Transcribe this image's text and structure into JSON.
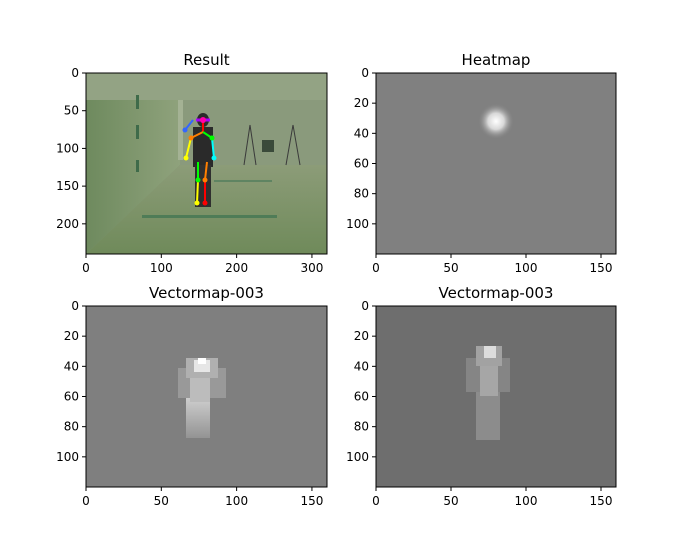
{
  "chart_data": [
    {
      "type": "image",
      "title": "Result",
      "xlim": [
        0,
        320
      ],
      "ylim": [
        240,
        0
      ],
      "xticks": [
        0,
        100,
        200,
        300
      ],
      "yticks": [
        0,
        50,
        100,
        150,
        200
      ],
      "skeleton_colors": [
        "#ff0000",
        "#ff7f00",
        "#ffff00",
        "#00ff00",
        "#00ffff",
        "#0055ff",
        "#aa00ff",
        "#ff00aa"
      ]
    },
    {
      "type": "heatmap",
      "title": "Heatmap",
      "xlim": [
        0,
        160
      ],
      "ylim": [
        120,
        0
      ],
      "xticks": [
        0,
        50,
        100,
        150
      ],
      "yticks": [
        0,
        20,
        40,
        60,
        80,
        100
      ],
      "background": "#808080",
      "peak": [
        80,
        32
      ]
    },
    {
      "type": "heatmap",
      "title": "Vectormap-003",
      "xlim": [
        0,
        160
      ],
      "ylim": [
        120,
        0
      ],
      "xticks": [
        0,
        50,
        100,
        150
      ],
      "yticks": [
        0,
        20,
        40,
        60,
        80,
        100
      ],
      "background": "#7f7f7f"
    },
    {
      "type": "heatmap",
      "title": "Vectormap-003",
      "xlim": [
        0,
        160
      ],
      "ylim": [
        120,
        0
      ],
      "xticks": [
        0,
        50,
        100,
        150
      ],
      "yticks": [
        0,
        20,
        40,
        60,
        80,
        100
      ],
      "background": "#6e6e6e"
    }
  ]
}
